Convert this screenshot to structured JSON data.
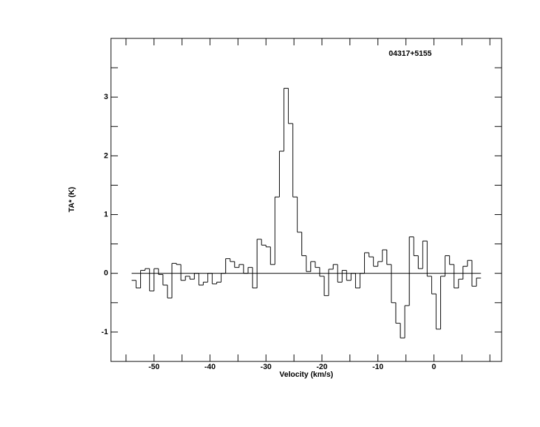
{
  "chart_data": {
    "type": "step",
    "title": "04317+5155",
    "xlabel": "Velocity (km/s)",
    "ylabel": "TA* (K)",
    "xlim": [
      -57.7,
      12.1
    ],
    "ylim": [
      -1.5,
      4.0
    ],
    "xticks": [
      -50,
      -40,
      -30,
      -20,
      -10,
      0
    ],
    "xminorticks": [
      -55,
      -45,
      -35,
      -25,
      -15,
      -5,
      5,
      10
    ],
    "yticks": [
      -1,
      0,
      1,
      2,
      3
    ],
    "yminorticks": [
      -0.5,
      0.5,
      1.5,
      2.5,
      3.5
    ],
    "color": "#000000",
    "x": [
      -53.6,
      -52.8,
      -52.0,
      -51.2,
      -50.4,
      -49.6,
      -48.8,
      -48.0,
      -47.2,
      -46.4,
      -45.6,
      -44.8,
      -44.0,
      -43.2,
      -42.4,
      -41.6,
      -40.8,
      -40.0,
      -39.2,
      -38.4,
      -37.6,
      -36.8,
      -36.0,
      -35.2,
      -34.4,
      -33.6,
      -32.8,
      -32.0,
      -31.2,
      -30.4,
      -29.6,
      -28.8,
      -28.0,
      -27.2,
      -26.4,
      -25.6,
      -24.8,
      -24.0,
      -23.2,
      -22.4,
      -21.6,
      -20.8,
      -20.0,
      -19.2,
      -18.4,
      -17.6,
      -16.8,
      -16.0,
      -15.2,
      -14.4,
      -13.6,
      -12.8,
      -12.0,
      -11.2,
      -10.4,
      -9.6,
      -8.8,
      -8.0,
      -7.2,
      -6.4,
      -5.6,
      -4.8,
      -4.0,
      -3.2,
      -2.4,
      -1.6,
      -0.8,
      0.0,
      0.8,
      1.6,
      2.4,
      3.2,
      4.0,
      4.8,
      5.6,
      6.4,
      7.2,
      8.0
    ],
    "values": [
      -0.12,
      -0.25,
      0.05,
      0.08,
      -0.3,
      0.08,
      -0.02,
      -0.2,
      -0.42,
      0.17,
      0.15,
      -0.12,
      -0.05,
      -0.1,
      0.0,
      -0.2,
      -0.15,
      0.0,
      -0.18,
      -0.15,
      0.0,
      0.25,
      0.2,
      0.1,
      0.15,
      0.0,
      0.1,
      -0.25,
      0.58,
      0.48,
      0.45,
      0.15,
      1.3,
      2.08,
      3.15,
      2.55,
      1.3,
      0.7,
      0.3,
      0.03,
      0.2,
      0.1,
      -0.05,
      -0.38,
      0.07,
      0.15,
      -0.15,
      0.05,
      -0.12,
      0.0,
      -0.25,
      0.0,
      0.35,
      0.28,
      0.12,
      0.2,
      0.4,
      0.15,
      -0.5,
      -0.85,
      -1.1,
      -0.55,
      0.62,
      0.3,
      0.08,
      0.55,
      -0.05,
      -0.35,
      -0.95,
      -0.05,
      0.3,
      0.15,
      -0.25,
      -0.1,
      0.12,
      0.22,
      -0.22,
      -0.08
    ]
  }
}
